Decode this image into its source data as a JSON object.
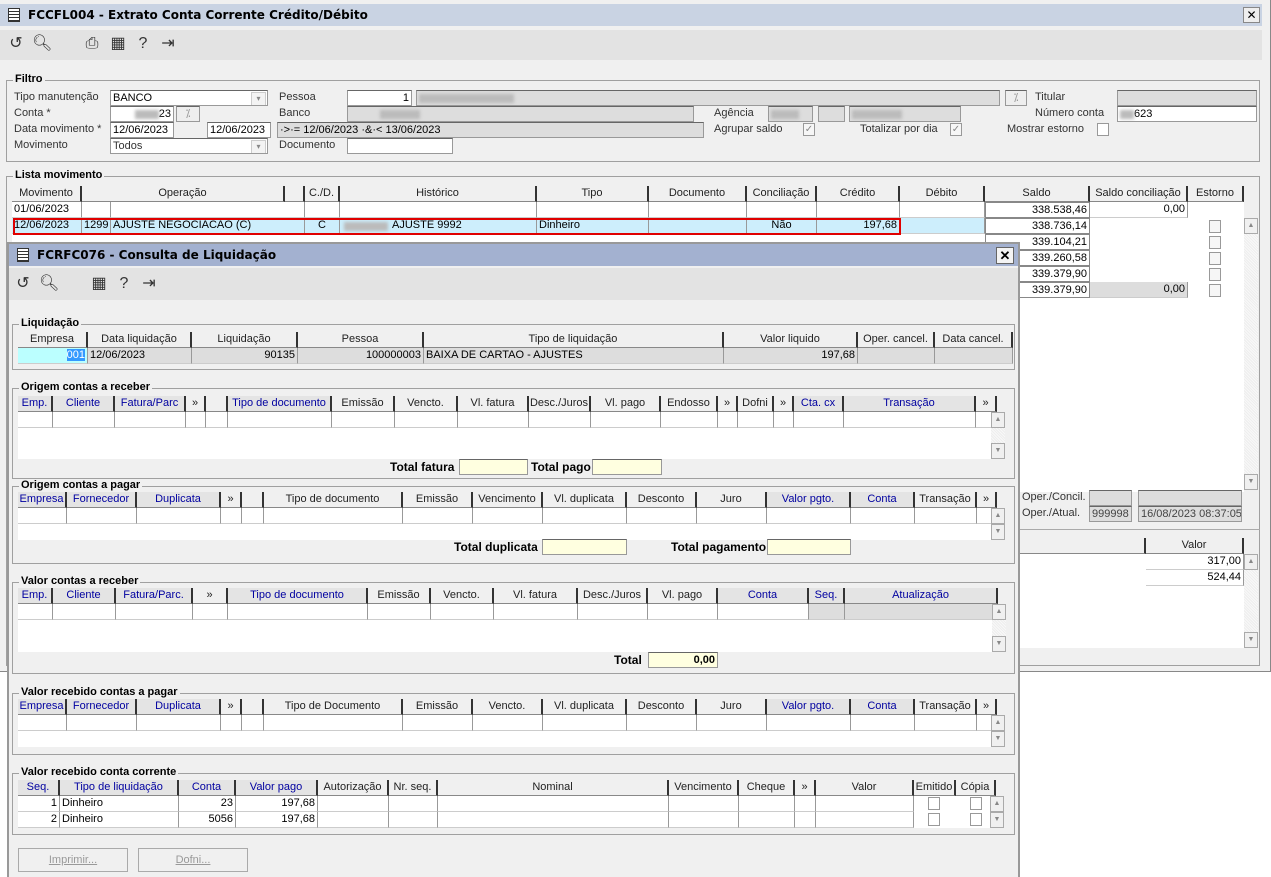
{
  "window": {
    "title": "FCCFL004 - Extrato Conta Corrente Crédito/Débito",
    "icons": [
      "undo-icon",
      "search-icon",
      "print-icon",
      "calendar-icon",
      "help-icon",
      "exit-icon"
    ]
  },
  "filtro": {
    "title": "Filtro",
    "tipo_manutencao_label": "Tipo manutenção",
    "tipo_manutencao": "BANCO",
    "conta_label": "Conta *",
    "conta": "23",
    "data_movimento_label": "Data movimento *",
    "data_inicio": "12/06/2023",
    "data_fim": "12/06/2023",
    "movimento_label": "Movimento",
    "movimento": "Todos",
    "pessoa_label": "Pessoa",
    "pessoa": "1",
    "banco_label": "Banco",
    "expressao": "·>·= 12/06/2023 ·&·< 13/06/2023",
    "documento_label": "Documento",
    "documento": "",
    "agencia_label": "Agência",
    "titular_label": "Titular",
    "numero_conta_label": "Número conta",
    "numero_conta": "623",
    "agrupar_saldo_label": "Agrupar saldo",
    "agrupar_saldo": true,
    "totalizar_dia_label": "Totalizar por dia",
    "totalizar_dia": true,
    "mostrar_estorno_label": "Mostrar estorno",
    "mostrar_estorno": false
  },
  "lista": {
    "title": "Lista movimento",
    "columns": [
      "Movimento",
      "Operação",
      "",
      "C./D.",
      "Histórico",
      "Tipo",
      "Documento",
      "Conciliação",
      "Crédito",
      "Débito",
      "Saldo",
      "Saldo conciliação",
      "Estorno"
    ],
    "rows": [
      {
        "movimento": "01/06/2023",
        "op_codigo": "",
        "op_descricao": "",
        "cd": "",
        "historico": "",
        "tipo": "",
        "documento": "",
        "conciliacao": "",
        "credito": "",
        "debito": "",
        "saldo": "338.538,46",
        "saldo_conciliacao": "0,00"
      },
      {
        "movimento": "12/06/2023",
        "op_codigo": "1299",
        "op_descricao": "AJUSTE NEGOCIACAO (C)",
        "cd": "C",
        "historico": "AJUSTE 9992",
        "tipo": "Dinheiro",
        "documento": "",
        "conciliacao": "Não",
        "credito": "197,68",
        "debito": "",
        "saldo": "338.736,14",
        "saldo_conciliacao": ""
      },
      {
        "saldo": "339.104,21",
        "saldo_conciliacao": ""
      },
      {
        "saldo": "339.260,58",
        "saldo_conciliacao": ""
      },
      {
        "saldo": "339.379,90",
        "saldo_conciliacao": ""
      },
      {
        "saldo": "339.379,90",
        "saldo_conciliacao": "0,00"
      }
    ],
    "oper_concil_label": "Oper./Concil.",
    "oper_atual_label": "Oper./Atual.",
    "oper_atual": "999998",
    "data_atual": "16/08/2023 08:37:05",
    "valor_header": "Valor",
    "valores": [
      "317,00",
      "524,44"
    ]
  },
  "dialog": {
    "title": "FCRFC076 - Consulta de Liquidação",
    "icons": [
      "undo-icon",
      "search-icon",
      "calendar-icon",
      "help-icon",
      "exit-icon"
    ],
    "liquidacao": {
      "title": "Liquidação",
      "columns": [
        {
          "label": "Empresa"
        },
        {
          "label": "Data liquidação"
        },
        {
          "label": "Liquidação"
        },
        {
          "label": "Pessoa"
        },
        {
          "label": "Tipo de liquidação"
        },
        {
          "label": "Valor liquido"
        },
        {
          "label": "Oper. cancel."
        },
        {
          "label": "Data cancel."
        }
      ],
      "rows": [
        [
          "001",
          "12/06/2023",
          "90135",
          "100000003",
          "BAIXA DE CARTAO - AJUSTES",
          "197,68",
          "",
          ""
        ]
      ]
    },
    "origem_receber": {
      "title": "Origem contas a receber",
      "columns": [
        {
          "label": "Emp.",
          "blue": true
        },
        {
          "label": "Cliente",
          "blue": true
        },
        {
          "label": "Fatura/Parc",
          "blue": true
        },
        {
          "label": "»"
        },
        {
          "label": "",
          "icon": "calendar-grid-icon"
        },
        {
          "label": "Tipo de documento",
          "blue": true
        },
        {
          "label": "Emissão"
        },
        {
          "label": "Vencto."
        },
        {
          "label": "Vl. fatura"
        },
        {
          "label": "Desc./Juros"
        },
        {
          "label": "Vl. pago"
        },
        {
          "label": "Endosso"
        },
        {
          "label": "»"
        },
        {
          "label": "Dofni"
        },
        {
          "label": "»"
        },
        {
          "label": "Cta. cx",
          "blue": true
        },
        {
          "label": "Transação",
          "blue": true
        },
        {
          "label": "»"
        }
      ],
      "rows": [
        [
          "",
          "",
          "",
          "",
          "",
          "",
          "",
          "",
          "",
          "",
          "",
          "",
          "",
          "",
          "",
          "",
          "",
          ""
        ]
      ],
      "total_fatura_label": "Total fatura",
      "total_fatura": "",
      "total_pago_label": "Total pago",
      "total_pago": ""
    },
    "origem_pagar": {
      "title": "Origem contas a pagar",
      "columns": [
        {
          "label": "Empresa",
          "blue": true
        },
        {
          "label": "Fornecedor",
          "blue": true
        },
        {
          "label": "Duplicata",
          "blue": true
        },
        {
          "label": "»"
        },
        {
          "label": "",
          "icon": "calendar-grid-icon"
        },
        {
          "label": "Tipo de documento"
        },
        {
          "label": "Emissão"
        },
        {
          "label": "Vencimento"
        },
        {
          "label": "Vl. duplicata"
        },
        {
          "label": "Desconto"
        },
        {
          "label": "Juro"
        },
        {
          "label": "Valor pgto.",
          "blue": true
        },
        {
          "label": "Conta",
          "blue": true
        },
        {
          "label": "Transação"
        },
        {
          "label": "»"
        }
      ],
      "rows": [
        [
          "",
          "",
          "",
          "",
          "",
          "",
          "",
          "",
          "",
          "",
          "",
          "",
          "",
          "",
          ""
        ]
      ],
      "total_duplicata_label": "Total duplicata",
      "total_duplicata": "",
      "total_pagamento_label": "Total pagamento",
      "total_pagamento": ""
    },
    "valor_receber": {
      "title": "Valor contas a receber",
      "columns": [
        {
          "label": "Emp.",
          "blue": true
        },
        {
          "label": "Cliente",
          "blue": true
        },
        {
          "label": "Fatura/Parc.",
          "blue": true
        },
        {
          "label": "»"
        },
        {
          "label": "Tipo de documento",
          "blue": true
        },
        {
          "label": "Emissão"
        },
        {
          "label": "Vencto."
        },
        {
          "label": "Vl. fatura"
        },
        {
          "label": "Desc./Juros"
        },
        {
          "label": "Vl. pago"
        },
        {
          "label": "Conta",
          "blue": true
        },
        {
          "label": "Seq.",
          "blue": true
        },
        {
          "label": "Atualização",
          "blue": true
        }
      ],
      "rows": [
        [
          "",
          "",
          "",
          "",
          "",
          "",
          "",
          "",
          "",
          "",
          "",
          "",
          ""
        ]
      ],
      "total_label": "Total",
      "total": "0,00"
    },
    "recebido_pagar": {
      "title": "Valor recebido contas a pagar",
      "columns": [
        {
          "label": "Empresa",
          "blue": true
        },
        {
          "label": "Fornecedor",
          "blue": true
        },
        {
          "label": "Duplicata",
          "blue": true
        },
        {
          "label": "»"
        },
        {
          "label": "",
          "icon": "calendar-grid-icon"
        },
        {
          "label": "Tipo de Documento"
        },
        {
          "label": "Emissão"
        },
        {
          "label": "Vencto."
        },
        {
          "label": "Vl. duplicata"
        },
        {
          "label": "Desconto"
        },
        {
          "label": "Juro"
        },
        {
          "label": "Valor pgto.",
          "blue": true
        },
        {
          "label": "Conta",
          "blue": true
        },
        {
          "label": "Transação"
        },
        {
          "label": "»"
        }
      ],
      "rows": [
        [
          "",
          "",
          "",
          "",
          "",
          "",
          "",
          "",
          "",
          "",
          "",
          "",
          "",
          "",
          ""
        ]
      ]
    },
    "conta_corrente": {
      "title": "Valor recebido conta corrente",
      "columns": [
        {
          "label": "Seq.",
          "blue": true
        },
        {
          "label": "Tipo de liquidação",
          "blue": true
        },
        {
          "label": "Conta",
          "blue": true
        },
        {
          "label": "Valor pago",
          "blue": true
        },
        {
          "label": "Autorização"
        },
        {
          "label": "Nr. seq."
        },
        {
          "label": "Nominal"
        },
        {
          "label": "Vencimento"
        },
        {
          "label": "Cheque"
        },
        {
          "label": "»"
        },
        {
          "label": "Valor"
        },
        {
          "label": "Emitido"
        },
        {
          "label": "Cópia"
        }
      ],
      "rows": [
        [
          "1",
          "Dinheiro",
          "23",
          "197,68",
          "",
          "",
          "",
          "",
          "",
          "",
          "",
          false,
          false
        ],
        [
          "2",
          "Dinheiro",
          "5056",
          "197,68",
          "",
          "",
          "",
          "",
          "",
          "",
          "",
          false,
          false
        ]
      ]
    },
    "buttons": {
      "imprimir": "Imprimir...",
      "dofni": "Dofni..."
    }
  }
}
